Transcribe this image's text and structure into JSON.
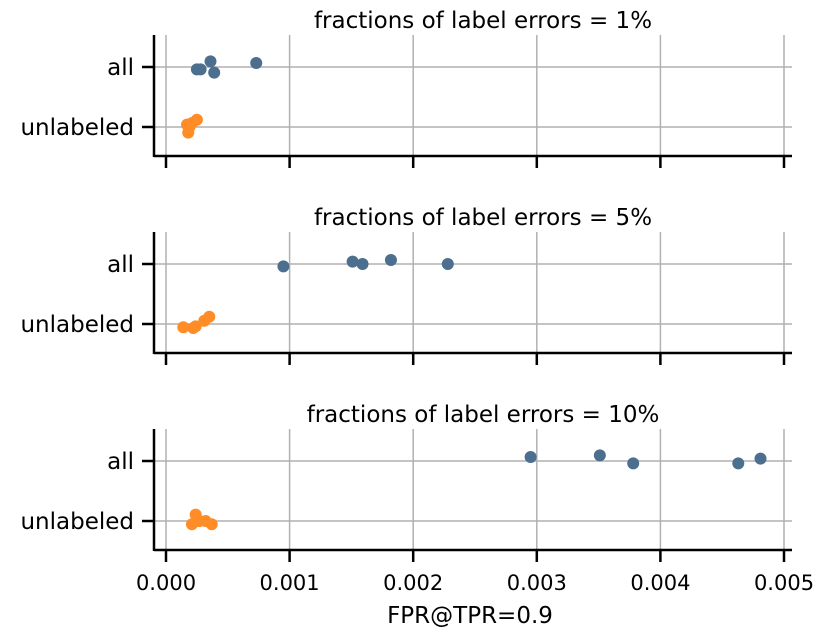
{
  "chart_data": [
    {
      "type": "scatter",
      "title": "fractions of label errors = 1%",
      "categories": [
        "all",
        "unlabeled"
      ],
      "xlim": [
        0,
        0.005
      ],
      "xticks": [
        "0.000",
        "0.001",
        "0.002",
        "0.003",
        "0.004",
        "0.005"
      ],
      "grid": true,
      "series": [
        {
          "category": "all",
          "color": "#4c6f8f",
          "points": [
            {
              "x": 0.00025,
              "y": -0.03
            },
            {
              "x": 0.00028,
              "y": -0.03
            },
            {
              "x": 0.00036,
              "y": 0.07
            },
            {
              "x": 0.00039,
              "y": -0.07
            },
            {
              "x": 0.00073,
              "y": 0.05
            }
          ]
        },
        {
          "category": "unlabeled",
          "color": "#ff8c26",
          "points": [
            {
              "x": 0.00017,
              "y": 0.03
            },
            {
              "x": 0.00018,
              "y": -0.07
            },
            {
              "x": 0.00019,
              "y": 0.0
            },
            {
              "x": 0.00021,
              "y": 0.05
            },
            {
              "x": 0.00025,
              "y": 0.09
            }
          ]
        }
      ]
    },
    {
      "type": "scatter",
      "title": "fractions of label errors = 5%",
      "categories": [
        "all",
        "unlabeled"
      ],
      "xlim": [
        0,
        0.005
      ],
      "xticks": [
        "0.000",
        "0.001",
        "0.002",
        "0.003",
        "0.004",
        "0.005"
      ],
      "grid": true,
      "series": [
        {
          "category": "all",
          "color": "#4c6f8f",
          "points": [
            {
              "x": 0.00095,
              "y": -0.03
            },
            {
              "x": 0.00151,
              "y": 0.03
            },
            {
              "x": 0.00159,
              "y": 0.0
            },
            {
              "x": 0.00182,
              "y": 0.05
            },
            {
              "x": 0.00228,
              "y": 0.0
            }
          ]
        },
        {
          "category": "unlabeled",
          "color": "#ff8c26",
          "points": [
            {
              "x": 0.00014,
              "y": -0.04
            },
            {
              "x": 0.00022,
              "y": -0.05
            },
            {
              "x": 0.00024,
              "y": -0.03
            },
            {
              "x": 0.00031,
              "y": 0.04
            },
            {
              "x": 0.00035,
              "y": 0.09
            }
          ]
        }
      ]
    },
    {
      "type": "scatter",
      "title": "fractions of label errors = 10%",
      "categories": [
        "all",
        "unlabeled"
      ],
      "xlim": [
        0,
        0.005
      ],
      "xticks": [
        "0.000",
        "0.001",
        "0.002",
        "0.003",
        "0.004",
        "0.005"
      ],
      "xlabel": "FPR@TPR=0.9",
      "grid": true,
      "series": [
        {
          "category": "all",
          "color": "#4c6f8f",
          "points": [
            {
              "x": 0.00295,
              "y": 0.05
            },
            {
              "x": 0.00351,
              "y": 0.07
            },
            {
              "x": 0.00378,
              "y": -0.03
            },
            {
              "x": 0.00463,
              "y": -0.03
            },
            {
              "x": 0.00481,
              "y": 0.03
            }
          ]
        },
        {
          "category": "unlabeled",
          "color": "#ff8c26",
          "points": [
            {
              "x": 0.00021,
              "y": -0.04
            },
            {
              "x": 0.00024,
              "y": 0.08
            },
            {
              "x": 0.00027,
              "y": 0.0
            },
            {
              "x": 0.00032,
              "y": 0.0
            },
            {
              "x": 0.00037,
              "y": -0.04
            }
          ]
        }
      ]
    }
  ]
}
